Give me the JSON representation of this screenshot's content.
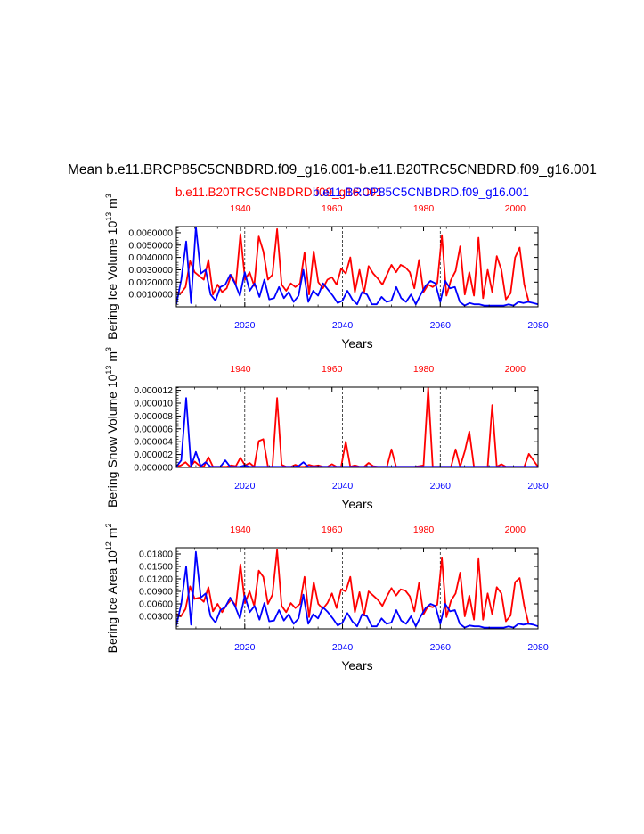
{
  "title": "Mean b.e11.BRCP85C5CNBDRD.f09_g16.001-b.e11.B20TRC5CNBDRD.f09_g16.001",
  "legend": {
    "red": "b.e11.B20TRC5CNBDRD.f09_g16.001",
    "blue": "b.e11.BRCP85C5CNBDRD.f09_g16.001"
  },
  "colors": {
    "red": "#ff0000",
    "blue": "#0000ff",
    "axis": "#000000"
  },
  "chart_data": [
    {
      "type": "line",
      "ylabel": "Bering Ice Volume 10^13 m^3",
      "ylabel_base": "Bering Ice Volume 10",
      "ylabel_exp": "13",
      "ylabel_unit": " m",
      "ylabel_unit_exp": "3",
      "xlabel": "Years",
      "ylim": [
        0.0,
        0.0065
      ],
      "yticks": [
        0.001,
        0.002,
        0.003,
        0.004,
        0.005,
        0.006
      ],
      "ytick_labels": [
        "0.0010000",
        "0.0020000",
        "0.0030000",
        "0.0040000",
        "0.0050000",
        "0.0060000"
      ],
      "x_bottom": {
        "range": [
          2006,
          2080
        ],
        "ticks": [
          2020,
          2040,
          2060,
          2080
        ],
        "labels": [
          "2020",
          "2040",
          "2060",
          "2080"
        ]
      },
      "x_top": {
        "range": [
          1926,
          2005
        ],
        "ticks": [
          1940,
          1960,
          1980,
          2000
        ],
        "labels": [
          "1940",
          "1960",
          "1980",
          "2000"
        ]
      },
      "dashed_x": [
        2020,
        2040,
        2060
      ],
      "series": [
        {
          "name": "b.e11.B20TRC5CNBDRD.f09_g16.001",
          "color": "#ff0000",
          "x_start": 1926,
          "values": [
            0.0012,
            0.0011,
            0.0016,
            0.0037,
            0.0028,
            0.0025,
            0.0022,
            0.0038,
            0.001,
            0.0018,
            0.0012,
            0.0015,
            0.0026,
            0.0018,
            0.0059,
            0.0022,
            0.0028,
            0.0017,
            0.0057,
            0.0045,
            0.0022,
            0.0026,
            0.0063,
            0.0018,
            0.0013,
            0.0019,
            0.0016,
            0.0019,
            0.0044,
            0.001,
            0.0045,
            0.002,
            0.0015,
            0.0022,
            0.0024,
            0.0018,
            0.0031,
            0.0027,
            0.004,
            0.0012,
            0.003,
            0.0011,
            0.0033,
            0.0027,
            0.0023,
            0.0018,
            0.0026,
            0.0034,
            0.0028,
            0.0034,
            0.0032,
            0.0028,
            0.0015,
            0.0038,
            0.0012,
            0.0018,
            0.0016,
            0.0019,
            0.0058,
            0.0009,
            0.0022,
            0.0029,
            0.0049,
            0.001,
            0.0028,
            0.0009,
            0.0056,
            0.0007,
            0.003,
            0.0012,
            0.0041,
            0.003,
            0.0006,
            0.0011,
            0.004,
            0.0048,
            0.0018,
            0.0004
          ]
        },
        {
          "name": "b.e11.BRCP85C5CNBDRD.f09_g16.001",
          "color": "#0000ff",
          "x_start": 2006,
          "values": [
            0.0002,
            0.0022,
            0.0053,
            0.0003,
            0.0065,
            0.0027,
            0.003,
            0.001,
            0.0005,
            0.0016,
            0.0018,
            0.0026,
            0.0019,
            0.0009,
            0.0028,
            0.0013,
            0.0019,
            0.0008,
            0.0022,
            0.0006,
            0.0007,
            0.0016,
            0.0007,
            0.0012,
            0.0004,
            0.0009,
            0.003,
            0.0004,
            0.0013,
            0.0009,
            0.0019,
            0.0014,
            0.0009,
            0.0003,
            0.0005,
            0.0013,
            0.0006,
            0.0002,
            0.0012,
            0.001,
            0.0002,
            0.0002,
            0.0008,
            0.0004,
            0.0005,
            0.0016,
            0.0007,
            0.0004,
            0.001,
            0.0002,
            0.001,
            0.0017,
            0.0021,
            0.0019,
            0.0004,
            0.0021,
            0.0015,
            0.0016,
            0.0004,
            0.0001,
            0.0003,
            0.0002,
            0.0002,
            0.0001,
            0.0001,
            0.0001,
            0.0001,
            0.0001,
            0.0002,
            0.0001,
            0.0004,
            0.0003,
            0.0004,
            0.0003,
            0.0002
          ]
        }
      ]
    },
    {
      "type": "line",
      "ylabel": "Bering Snow Volume 10^13 m^3",
      "ylabel_base": "Bering Snow Volume 10",
      "ylabel_exp": "13",
      "ylabel_unit": " m",
      "ylabel_unit_exp": "3",
      "xlabel": "Years",
      "ylim": [
        0.0,
        1.25e-05
      ],
      "yticks": [
        0.0,
        2e-06,
        4e-06,
        6e-06,
        8e-06,
        1e-05,
        1.2e-05
      ],
      "ytick_labels": [
        "0.000000",
        "0.000002",
        "0.000004",
        "0.000006",
        "0.000008",
        "0.000010",
        "0.000012"
      ],
      "x_bottom": {
        "range": [
          2006,
          2080
        ],
        "ticks": [
          2020,
          2040,
          2060,
          2080
        ],
        "labels": [
          "2020",
          "2040",
          "2060",
          "2080"
        ]
      },
      "x_top": {
        "range": [
          1926,
          2005
        ],
        "ticks": [
          1940,
          1960,
          1980,
          2000
        ],
        "labels": [
          "1940",
          "1960",
          "1980",
          "2000"
        ]
      },
      "dashed_x": [
        2020,
        2040,
        2060
      ],
      "series": [
        {
          "name": "b.e11.B20TRC5CNBDRD.f09_g16.001",
          "color": "#ff0000",
          "x_start": 1926,
          "values": [
            1e-07,
            3e-07,
            8e-07,
            1e-07,
            9e-07,
            3e-07,
            1e-07,
            1.6e-06,
            1e-07,
            1e-07,
            1e-07,
            1e-07,
            3e-07,
            2e-07,
            1.5e-06,
            3e-07,
            7e-07,
            1e-07,
            4.1e-06,
            4.4e-06,
            1e-07,
            1e-07,
            1.08e-05,
            4e-07,
            1e-07,
            1e-07,
            4e-07,
            1e-07,
            1e-07,
            4e-07,
            2e-07,
            3e-07,
            1e-07,
            1e-07,
            5e-07,
            1e-07,
            1e-07,
            4e-06,
            1e-07,
            3e-07,
            1e-07,
            1e-07,
            7e-07,
            2e-07,
            1e-07,
            1e-07,
            1e-07,
            2.8e-06,
            1e-07,
            1e-07,
            1e-07,
            1e-07,
            1e-07,
            2e-07,
            3e-07,
            1.24e-05,
            1e-07,
            1e-07,
            1e-07,
            1e-07,
            1e-07,
            2.8e-06,
            1e-07,
            2.5e-06,
            5.6e-06,
            1e-07,
            1e-07,
            1e-07,
            1e-07,
            9.7e-06,
            1e-07,
            5e-07,
            1e-07,
            1e-07,
            1e-07,
            1e-07,
            1e-07,
            2.1e-06,
            1.1e-06,
            1e-07
          ]
        },
        {
          "name": "b.e11.BRCP85C5CNBDRD.f09_g16.001",
          "color": "#0000ff",
          "x_start": 2006,
          "values": [
            1e-07,
            1.1e-06,
            1.08e-05,
            1e-07,
            2.4e-06,
            2e-07,
            8e-07,
            1e-07,
            1e-07,
            1e-07,
            1.1e-06,
            1e-07,
            1e-07,
            1e-07,
            3e-07,
            1e-07,
            1e-07,
            1e-07,
            1e-07,
            1e-07,
            1e-07,
            1e-07,
            1e-07,
            1e-07,
            1e-07,
            2e-07,
            8e-07,
            1e-07,
            1e-07,
            1e-07,
            1e-07,
            1e-07,
            1e-07,
            1e-07,
            1e-07,
            1e-07,
            1e-07,
            1e-07,
            1e-07,
            1e-07,
            1e-07,
            1e-07,
            1e-07,
            1e-07,
            1e-07,
            1e-07,
            1e-07,
            1e-07,
            1e-07,
            1e-07,
            1e-07,
            1e-07,
            1e-07,
            1e-07,
            1e-07,
            1e-07,
            1e-07,
            1e-07,
            1e-07,
            1e-07,
            1e-07,
            1e-07,
            1e-07,
            1e-07,
            1e-07,
            1e-07,
            1e-07,
            1e-07,
            1e-07,
            1e-07,
            1e-07,
            1e-07,
            1e-07,
            1e-07,
            1e-07
          ]
        }
      ]
    },
    {
      "type": "line",
      "ylabel": "Bering Ice Area 10^12 m^2",
      "ylabel_base": "Bering Ice Area 10",
      "ylabel_exp": "12",
      "ylabel_unit": " m",
      "ylabel_unit_exp": "2",
      "xlabel": "Years",
      "ylim": [
        0.0,
        0.0195
      ],
      "yticks": [
        0.003,
        0.006,
        0.009,
        0.012,
        0.015,
        0.018
      ],
      "ytick_labels": [
        "0.00300",
        "0.00600",
        "0.00900",
        "0.01200",
        "0.01500",
        "0.01800"
      ],
      "x_bottom": {
        "range": [
          2006,
          2080
        ],
        "ticks": [
          2020,
          2040,
          2060,
          2080
        ],
        "labels": [
          "2020",
          "2040",
          "2060",
          "2080"
        ]
      },
      "x_top": {
        "range": [
          1926,
          2005
        ],
        "ticks": [
          1940,
          1960,
          1980,
          2000
        ],
        "labels": [
          "1940",
          "1960",
          "1980",
          "2000"
        ]
      },
      "dashed_x": [
        2020,
        2040,
        2060
      ],
      "series": [
        {
          "name": "b.e11.B20TRC5CNBDRD.f09_g16.001",
          "color": "#ff0000",
          "x_start": 1926,
          "values": [
            0.0035,
            0.003,
            0.0048,
            0.0102,
            0.0072,
            0.0075,
            0.0065,
            0.01,
            0.0042,
            0.006,
            0.004,
            0.0058,
            0.007,
            0.0055,
            0.0155,
            0.0062,
            0.009,
            0.0055,
            0.014,
            0.0125,
            0.006,
            0.0082,
            0.019,
            0.0055,
            0.004,
            0.0062,
            0.005,
            0.006,
            0.0125,
            0.0028,
            0.0112,
            0.006,
            0.0048,
            0.0062,
            0.0085,
            0.005,
            0.0095,
            0.009,
            0.0125,
            0.004,
            0.0088,
            0.0032,
            0.009,
            0.008,
            0.007,
            0.0055,
            0.0078,
            0.0098,
            0.008,
            0.0095,
            0.0092,
            0.0078,
            0.0042,
            0.011,
            0.0035,
            0.0055,
            0.0052,
            0.0058,
            0.017,
            0.0028,
            0.0068,
            0.0085,
            0.0135,
            0.003,
            0.008,
            0.0022,
            0.0168,
            0.0022,
            0.0085,
            0.0035,
            0.01,
            0.0085,
            0.0018,
            0.0032,
            0.0112,
            0.0122,
            0.0055,
            0.001
          ]
        },
        {
          "name": "b.e11.BRCP85C5CNBDRD.f09_g16.001",
          "color": "#0000ff",
          "x_start": 2006,
          "values": [
            0.0008,
            0.006,
            0.015,
            0.001,
            0.0185,
            0.0075,
            0.0085,
            0.003,
            0.0015,
            0.0045,
            0.0052,
            0.0075,
            0.0055,
            0.0025,
            0.008,
            0.004,
            0.0055,
            0.0022,
            0.0062,
            0.0018,
            0.002,
            0.0045,
            0.002,
            0.0035,
            0.0012,
            0.0025,
            0.0082,
            0.0012,
            0.0035,
            0.0025,
            0.0052,
            0.004,
            0.0025,
            0.0008,
            0.0015,
            0.0038,
            0.0018,
            0.0006,
            0.0035,
            0.003,
            0.0006,
            0.0006,
            0.0025,
            0.0012,
            0.0015,
            0.0045,
            0.002,
            0.0012,
            0.003,
            0.0006,
            0.003,
            0.005,
            0.006,
            0.0055,
            0.0012,
            0.006,
            0.0042,
            0.0045,
            0.0012,
            0.0003,
            0.0008,
            0.0006,
            0.0006,
            0.0003,
            0.0003,
            0.0003,
            0.0003,
            0.0003,
            0.0006,
            0.0003,
            0.0012,
            0.001,
            0.0012,
            0.001,
            0.0006
          ]
        }
      ]
    }
  ]
}
